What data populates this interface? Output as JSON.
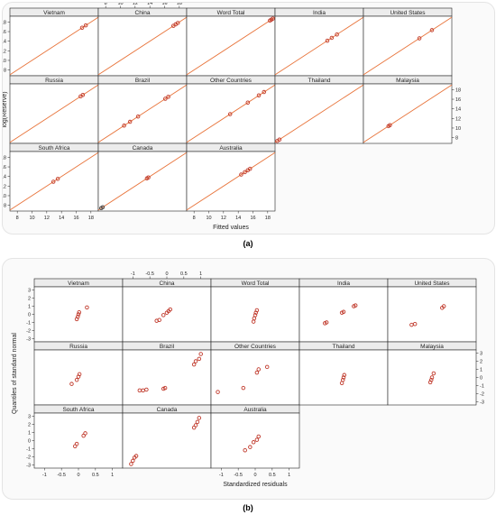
{
  "captions": {
    "a": "(a)",
    "b": "(b)"
  },
  "colors": {
    "fit_line": "#e8743b",
    "frame": "#222222",
    "strip": "#ececec",
    "point": "#c0392b",
    "point_alt_green": "#2ecc71",
    "point_alt_blue": "#3a7bd5"
  },
  "chart_data": [
    {
      "type": "scatter",
      "title": "",
      "xlabel": "Fitted values",
      "ylabel": "log(Reserve)",
      "xlim": [
        7,
        19
      ],
      "ylim": [
        6.8,
        19.2
      ],
      "x_ticks": [
        8,
        10,
        12,
        14,
        16,
        18
      ],
      "y_ticks": [
        8,
        10,
        12,
        14,
        16,
        18
      ],
      "reference_line": "y = x",
      "layout": {
        "rows": 3,
        "cols": 5
      },
      "panels": [
        {
          "name": "Vietnam",
          "points": [
            [
              16.8,
              16.8
            ],
            [
              17.3,
              17.3
            ]
          ]
        },
        {
          "name": "China",
          "points": [
            [
              17.2,
              17.2
            ],
            [
              17.5,
              17.5
            ],
            [
              17.8,
              17.8
            ]
          ]
        },
        {
          "name": "Word Total",
          "points": [
            [
              18.3,
              18.3
            ],
            [
              18.5,
              18.5
            ],
            [
              18.7,
              18.7
            ]
          ]
        },
        {
          "name": "India",
          "points": [
            [
              14.1,
              14.1
            ],
            [
              14.7,
              14.7
            ],
            [
              15.4,
              15.4
            ]
          ]
        },
        {
          "name": "United States",
          "points": [
            [
              14.6,
              14.6
            ],
            [
              16.3,
              16.3
            ]
          ]
        },
        {
          "name": "Russia",
          "points": [
            [
              16.6,
              16.6
            ],
            [
              16.9,
              16.9
            ]
          ]
        },
        {
          "name": "Brazil",
          "points": [
            [
              10.5,
              10.5
            ],
            [
              11.3,
              11.3
            ],
            [
              12.4,
              12.4
            ],
            [
              16.1,
              16.1
            ],
            [
              16.5,
              16.5
            ]
          ]
        },
        {
          "name": "Other Countries",
          "points": [
            [
              12.9,
              12.9
            ],
            [
              15.3,
              15.3
            ],
            [
              16.8,
              16.8
            ],
            [
              17.5,
              17.5
            ]
          ]
        },
        {
          "name": "Thailand",
          "points": [
            [
              7.3,
              7.3
            ],
            [
              7.6,
              7.6
            ]
          ]
        },
        {
          "name": "Malaysia",
          "points": [
            [
              10.4,
              10.4
            ],
            [
              10.6,
              10.6
            ]
          ]
        },
        {
          "name": "South Africa",
          "points": [
            [
              12.9,
              12.9
            ],
            [
              13.5,
              13.5
            ]
          ]
        },
        {
          "name": "Canada",
          "points": [
            [
              13.6,
              13.6
            ],
            [
              13.8,
              13.8
            ]
          ],
          "extra": [
            [
              7.4,
              7.4
            ],
            [
              7.6,
              7.6
            ]
          ]
        },
        {
          "name": "Australia",
          "points": [
            [
              14.4,
              14.4
            ],
            [
              14.9,
              14.9
            ],
            [
              15.3,
              15.3
            ],
            [
              15.6,
              15.6
            ]
          ]
        }
      ]
    },
    {
      "type": "scatter",
      "title": "",
      "xlabel": "Standardized residuals",
      "ylabel": "Quantiles of standard normal",
      "xlim": [
        -1.3,
        1.3
      ],
      "ylim": [
        -3.4,
        3.4
      ],
      "x_ticks": [
        -1.0,
        -0.5,
        0.0,
        0.5,
        1.0
      ],
      "y_ticks": [
        -3,
        -2,
        -1,
        0,
        1,
        2,
        3
      ],
      "layout": {
        "rows": 3,
        "cols": 5
      },
      "panels": [
        {
          "name": "Vietnam",
          "points": [
            [
              -0.05,
              -0.6
            ],
            [
              -0.02,
              -0.3
            ],
            [
              0.0,
              0.0
            ],
            [
              0.02,
              0.25
            ],
            [
              0.25,
              0.85
            ]
          ]
        },
        {
          "name": "China",
          "points": [
            [
              -0.3,
              -0.8
            ],
            [
              -0.22,
              -0.7
            ],
            [
              -0.1,
              -0.1
            ],
            [
              0.0,
              0.2
            ],
            [
              0.05,
              0.4
            ],
            [
              0.1,
              0.6
            ]
          ]
        },
        {
          "name": "Word Total",
          "points": [
            [
              -0.05,
              -0.9
            ],
            [
              -0.03,
              -0.5
            ],
            [
              0.0,
              -0.1
            ],
            [
              0.02,
              0.2
            ],
            [
              0.05,
              0.5
            ]
          ]
        },
        {
          "name": "India",
          "points": [
            [
              -0.55,
              -1.1
            ],
            [
              -0.5,
              -1.0
            ],
            [
              -0.05,
              0.2
            ],
            [
              0.0,
              0.3
            ],
            [
              0.3,
              1.0
            ],
            [
              0.35,
              1.1
            ]
          ]
        },
        {
          "name": "United States",
          "points": [
            [
              -0.6,
              -1.3
            ],
            [
              -0.5,
              -1.2
            ],
            [
              0.3,
              0.8
            ],
            [
              0.35,
              1.0
            ]
          ]
        },
        {
          "name": "Russia",
          "points": [
            [
              -0.2,
              -0.8
            ],
            [
              -0.05,
              -0.3
            ],
            [
              0.0,
              0.1
            ],
            [
              0.03,
              0.4
            ]
          ]
        },
        {
          "name": "Brazil",
          "points": [
            [
              -0.8,
              -1.6
            ],
            [
              -0.7,
              -1.6
            ],
            [
              -0.6,
              -1.5
            ],
            [
              -0.1,
              -1.4
            ],
            [
              -0.05,
              -1.3
            ],
            [
              0.8,
              1.6
            ],
            [
              0.85,
              2.0
            ],
            [
              0.95,
              2.3
            ],
            [
              1.0,
              2.9
            ]
          ]
        },
        {
          "name": "Other Countries",
          "points": [
            [
              -1.1,
              -1.8
            ],
            [
              -0.35,
              -1.3
            ],
            [
              0.05,
              0.6
            ],
            [
              0.1,
              1.0
            ],
            [
              0.35,
              1.3
            ]
          ]
        },
        {
          "name": "Thailand",
          "points": [
            [
              -0.05,
              -0.7
            ],
            [
              -0.02,
              -0.3
            ],
            [
              0.0,
              0.0
            ],
            [
              0.02,
              0.3
            ]
          ]
        },
        {
          "name": "Malaysia",
          "points": [
            [
              -0.05,
              -0.6
            ],
            [
              -0.02,
              -0.3
            ],
            [
              0.0,
              0.0
            ],
            [
              0.05,
              0.5
            ]
          ]
        },
        {
          "name": "South Africa",
          "points": [
            [
              -0.1,
              -0.7
            ],
            [
              -0.05,
              -0.4
            ],
            [
              0.15,
              0.6
            ],
            [
              0.2,
              0.9
            ]
          ]
        },
        {
          "name": "Canada",
          "points": [
            [
              -1.05,
              -2.9
            ],
            [
              -1.0,
              -2.5
            ],
            [
              -0.95,
              -2.1
            ],
            [
              -0.9,
              -1.9
            ],
            [
              0.8,
              1.6
            ],
            [
              0.85,
              1.9
            ],
            [
              0.9,
              2.3
            ],
            [
              0.95,
              2.8
            ]
          ]
        },
        {
          "name": "Australia",
          "points": [
            [
              -0.3,
              -1.2
            ],
            [
              -0.15,
              -0.8
            ],
            [
              -0.05,
              -0.2
            ],
            [
              0.05,
              0.1
            ],
            [
              0.1,
              0.5
            ]
          ]
        }
      ]
    }
  ]
}
